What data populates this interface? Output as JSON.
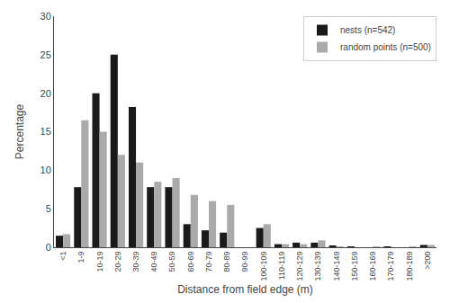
{
  "chart_data": {
    "type": "bar",
    "xlabel": "Distance from field edge (m)",
    "ylabel": "Percentage",
    "categories": [
      "<1",
      "1-9",
      "10-19",
      "20-29",
      "30-39",
      "40-49",
      "50-59",
      "60-69",
      "70-79",
      "80-89",
      "90-99",
      "100-109",
      "110-119",
      "120-129",
      "130-139",
      "140-149",
      "150-159",
      "160-169",
      "170-179",
      "180-189",
      ">200"
    ],
    "series": [
      {
        "name": "nests (n=542)",
        "color": "#1a1a1a",
        "values": [
          1.5,
          7.8,
          20.0,
          25.0,
          18.2,
          7.8,
          7.8,
          3.0,
          2.2,
          1.9,
          0.0,
          2.5,
          0.4,
          0.6,
          0.6,
          0.2,
          0.1,
          0.0,
          0.1,
          0.0,
          0.3
        ]
      },
      {
        "name": "random points (n=500)",
        "color": "#aaaaaa",
        "values": [
          1.7,
          16.5,
          15.0,
          12.0,
          11.0,
          8.5,
          9.0,
          6.8,
          6.0,
          5.5,
          0.0,
          3.0,
          0.4,
          0.4,
          0.9,
          0.1,
          0.0,
          0.1,
          0.0,
          0.1,
          0.3
        ]
      }
    ],
    "ylim": [
      0,
      30
    ],
    "yticks": [
      0,
      5,
      10,
      15,
      20,
      25,
      30
    ],
    "grid": false,
    "legend": "upper right"
  }
}
